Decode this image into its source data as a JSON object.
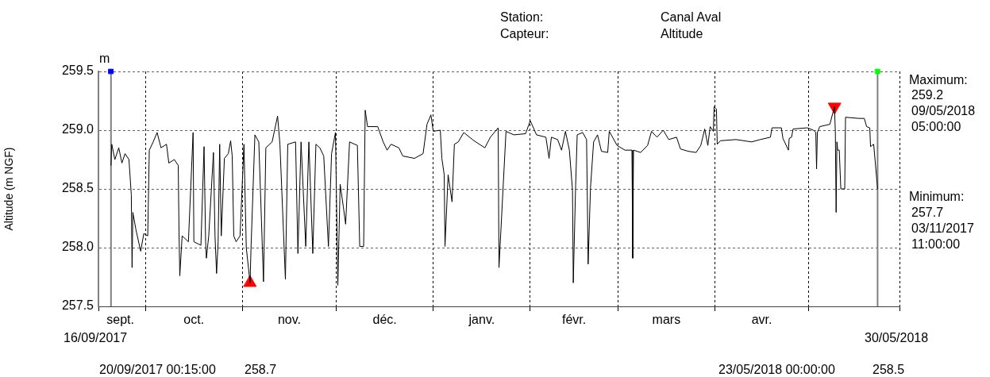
{
  "chart_data": {
    "type": "line",
    "ylabel": "Altitude (m NGF)",
    "annotations": [
      "Station:",
      "Canal Aval",
      "Capteur:",
      "Altitude",
      "m",
      "Maximum:",
      "259.2",
      "09/05/2018",
      "05:00:00",
      "Minimum:",
      "257.7",
      "03/11/2017",
      "11:00:00",
      "20/09/2017 00:15:00",
      "258.7",
      "23/05/2018 00:00:00",
      "258.5",
      "16/09/2017",
      "30/05/2018"
    ],
    "xlim": [
      "2017-09-16",
      "2018-05-30"
    ],
    "xticks": [
      {
        "value": "2017-09-16",
        "label": null
      },
      {
        "value": "2017-09-23",
        "label": "sept."
      },
      {
        "value": "2017-10-01",
        "label": null
      },
      {
        "value": "2017-10-16T12:00",
        "label": "oct."
      },
      {
        "value": "2017-11-01",
        "label": null
      },
      {
        "value": "2017-11-16",
        "label": "nov."
      },
      {
        "value": "2017-12-01",
        "label": null
      },
      {
        "value": "2017-12-16T12:00",
        "label": "déc."
      },
      {
        "value": "2018-01-01",
        "label": null
      },
      {
        "value": "2018-01-16T12:00",
        "label": "janv."
      },
      {
        "value": "2018-02-01",
        "label": null
      },
      {
        "value": "2018-02-15",
        "label": "févr."
      },
      {
        "value": "2018-03-01",
        "label": null
      },
      {
        "value": "2018-03-16T12:00",
        "label": "mars"
      },
      {
        "value": "2018-04-01",
        "label": null
      },
      {
        "value": "2018-04-16",
        "label": "avr."
      },
      {
        "value": "2018-05-01",
        "label": null
      },
      {
        "value": "2018-05-30",
        "label": null
      }
    ],
    "ylim": [
      257.5,
      259.5
    ],
    "yticks": [
      257.5,
      {
        "value": 258,
        "label": "258.0"
      },
      258.5,
      {
        "value": 259,
        "label": "259.0"
      },
      259.5
    ],
    "grid": true,
    "ref_lines": [
      {
        "axis": "x",
        "value": "2017-09-20T00:15",
        "color": "#808080"
      },
      {
        "axis": "x",
        "value": "2018-05-23T00:00",
        "color": "#808080"
      }
    ],
    "series": [
      {
        "color": "#000000",
        "marker": "none",
        "x": [
          "2017-09-20T00:15",
          "2017-09-20T06:00",
          "2017-09-21T06:00",
          "2017-09-22T12:00",
          "2017-09-23T12:00",
          "2017-09-24T12:00",
          "2017-09-25T18:00",
          "2017-09-26T12:00",
          "2017-09-26T18:00",
          "2017-09-27T00:00",
          "2017-09-28T00:00",
          "2017-09-29T12:00",
          "2017-09-30T12:00",
          "2017-10-01T18:00",
          "2017-10-02T06:00",
          "2017-10-03T12:00",
          "2017-10-04T18:00",
          "2017-10-06T00:00",
          "2017-10-07T18:00",
          "2017-10-08T12:00",
          "2017-10-10T06:00",
          "2017-10-11T12:00",
          "2017-10-11T18:00",
          "2017-10-12T00:00",
          "2017-10-12T18:00",
          "2017-10-14T18:00",
          "2017-10-16T06:00",
          "2017-10-16T12:00",
          "2017-10-18T18:00",
          "2017-10-19T18:00",
          "2017-10-20T06:00",
          "2017-10-20T12:00",
          "2017-10-21T06:00",
          "2017-10-22T18:00",
          "2017-10-23T06:00",
          "2017-10-23T18:00",
          "2017-10-24T06:00",
          "2017-10-24T18:00",
          "2017-10-25T06:00",
          "2017-10-26T06:00",
          "2017-10-27T12:00",
          "2017-10-28T06:00",
          "2017-10-28T18:00",
          "2017-10-29T06:00",
          "2017-10-30T00:00",
          "2017-10-31T06:00",
          "2017-11-01T12:00",
          "2017-11-02T06:00",
          "2017-11-03T11:00",
          "2017-11-03T18:00",
          "2017-11-05T00:00",
          "2017-11-06T06:00",
          "2017-11-07T18:00",
          "2017-11-08T12:00",
          "2017-11-10T12:00",
          "2017-11-12T06:00",
          "2017-11-13T00:00",
          "2017-11-14T18:00",
          "2017-11-15T12:00",
          "2017-11-18T00:00",
          "2017-11-18T18:00",
          "2017-11-19T18:00",
          "2017-11-21T06:00",
          "2017-11-22T06:00",
          "2017-11-23T12:00",
          "2017-11-24T12:00",
          "2017-11-25T18:00",
          "2017-11-27T00:00",
          "2017-11-28T12:00",
          "2017-11-29T12:00",
          "2017-11-30T18:00",
          "2017-12-01T12:00",
          "2017-12-02T06:00",
          "2017-12-03T06:00",
          "2017-12-04T00:00",
          "2017-12-05T06:00",
          "2017-12-07T18:00",
          "2017-12-08T12:00",
          "2017-12-09T18:00",
          "2017-12-10T06:00",
          "2017-12-11T00:00",
          "2017-12-14T06:00",
          "2017-12-16T00:00",
          "2017-12-17T06:00",
          "2017-12-18T12:00",
          "2017-12-21T00:00",
          "2017-12-22T06:00",
          "2017-12-26T00:00",
          "2017-12-28T18:00",
          "2017-12-30T00:00",
          "2017-12-31T06:00",
          "2018-01-01T00:00",
          "2018-01-03T06:00",
          "2018-01-03T18:00",
          "2018-01-04T12:00",
          "2018-01-04T18:00",
          "2018-01-05T18:00",
          "2018-01-07T00:00",
          "2018-01-07T18:00",
          "2018-01-09T00:00",
          "2018-01-10T18:00",
          "2018-01-14T00:00",
          "2018-01-17T12:00",
          "2018-01-19T06:00",
          "2018-01-21T18:00",
          "2018-01-22T00:00",
          "2018-01-24T06:00",
          "2018-01-26T18:00",
          "2018-01-30T12:00",
          "2018-02-01T00:00",
          "2018-02-03T00:00",
          "2018-02-06T00:00",
          "2018-02-07T00:00",
          "2018-02-07T18:00",
          "2018-02-09T18:00",
          "2018-02-11T00:00",
          "2018-02-12T06:00",
          "2018-02-13T12:00",
          "2018-02-14T12:00",
          "2018-02-14T18:00",
          "2018-02-15T12:00",
          "2018-02-16T00:00",
          "2018-02-17T18:00",
          "2018-02-19T00:00",
          "2018-02-19T12:00",
          "2018-02-20T06:00",
          "2018-02-21T06:00",
          "2018-02-22T12:00",
          "2018-02-23T18:00",
          "2018-02-25T18:00",
          "2018-02-26T06:00",
          "2018-02-28T18:00",
          "2018-03-03T06:00",
          "2018-03-05T12:00",
          "2018-03-05T18:00",
          "2018-03-06T00:00",
          "2018-03-08T06:00",
          "2018-03-10T12:00",
          "2018-03-11T18:00",
          "2018-03-13T12:00",
          "2018-03-15T12:00",
          "2018-03-17T06:00",
          "2018-03-19T18:00",
          "2018-03-21T00:00",
          "2018-03-23T12:00",
          "2018-03-26T00:00",
          "2018-03-27T12:00",
          "2018-03-28T18:00",
          "2018-03-29T18:00",
          "2018-03-30T12:00",
          "2018-03-31T12:00",
          "2018-03-31T18:00",
          "2018-04-01T12:00",
          "2018-04-01T18:00",
          "2018-04-02T18:00",
          "2018-04-07T18:00",
          "2018-04-12T18:00",
          "2018-04-15T12:00",
          "2018-04-18T18:00",
          "2018-04-19T06:00",
          "2018-04-22T06:00",
          "2018-04-22T18:00",
          "2018-04-24T12:00",
          "2018-04-24T18:00",
          "2018-04-25T12:00",
          "2018-04-26T00:00",
          "2018-04-30T12:00",
          "2018-05-02T12:00",
          "2018-05-03T06:00",
          "2018-05-03T12:00",
          "2018-05-03T18:00",
          "2018-05-04T12:00",
          "2018-05-07T18:00",
          "2018-05-09T05:00",
          "2018-05-09T12:00",
          "2018-05-09T18:00",
          "2018-05-10T00:00",
          "2018-05-10T06:00",
          "2018-05-10T18:00",
          "2018-05-11T06:00",
          "2018-05-12T12:00",
          "2018-05-12T18:00",
          "2018-05-17T00:00",
          "2018-05-18T18:00",
          "2018-05-19T12:00",
          "2018-05-20T12:00",
          "2018-05-20T18:00",
          "2018-05-21T18:00",
          "2018-05-23T00:00"
        ],
        "values": [
          258.7,
          258.88,
          258.75,
          258.85,
          258.72,
          258.8,
          258.75,
          258.45,
          257.83,
          258.3,
          258.15,
          257.97,
          258.12,
          258.1,
          258.83,
          258.9,
          258.98,
          258.85,
          258.88,
          258.72,
          258.75,
          258.7,
          258.13,
          257.76,
          258.1,
          258.05,
          258.98,
          258.05,
          258.02,
          258.86,
          258.05,
          257.91,
          258.1,
          258.81,
          258.1,
          257.78,
          258.05,
          258.88,
          258.1,
          258.76,
          258.8,
          258.91,
          258.78,
          258.1,
          258.05,
          258.1,
          258.88,
          258.0,
          257.7,
          257.99,
          258.96,
          258.9,
          257.71,
          258.85,
          258.9,
          259.12,
          258.88,
          257.73,
          258.88,
          258.9,
          257.95,
          258.9,
          258.01,
          258.9,
          257.95,
          258.88,
          258.85,
          258.78,
          258.01,
          258.8,
          258.98,
          257.68,
          258.54,
          258.35,
          258.2,
          258.9,
          258.87,
          258.01,
          258.01,
          259.17,
          259.03,
          259.03,
          258.9,
          258.83,
          258.88,
          258.85,
          258.78,
          258.76,
          258.8,
          259.05,
          259.13,
          258.99,
          259.0,
          258.76,
          258.62,
          258.01,
          258.62,
          258.39,
          258.88,
          258.9,
          258.98,
          258.91,
          258.85,
          258.94,
          259.02,
          257.83,
          258.99,
          258.96,
          258.97,
          259.08,
          258.96,
          258.94,
          258.76,
          258.94,
          258.92,
          258.83,
          258.99,
          258.83,
          258.49,
          257.7,
          258.53,
          258.96,
          258.98,
          258.92,
          257.86,
          258.51,
          258.9,
          258.96,
          258.82,
          258.81,
          258.99,
          258.87,
          258.83,
          258.83,
          257.91,
          258.83,
          258.81,
          258.87,
          258.99,
          258.94,
          259.0,
          258.92,
          258.94,
          258.84,
          258.82,
          258.81,
          258.87,
          259.01,
          258.87,
          259.03,
          258.99,
          259.2,
          259.18,
          258.88,
          258.91,
          258.92,
          258.9,
          258.92,
          258.94,
          259.02,
          259.02,
          258.93,
          258.83,
          258.93,
          258.94,
          259.01,
          259.02,
          259.0,
          258.98,
          258.67,
          258.98,
          259.03,
          259.05,
          259.2,
          258.99,
          258.3,
          258.9,
          258.83,
          258.83,
          258.5,
          258.5,
          259.11,
          259.1,
          259.1,
          259.03,
          259.02,
          258.86,
          258.88,
          258.5
        ]
      },
      {
        "type": "scatter",
        "marker": "triangle",
        "color": "#ff0000",
        "x": [
          "2017-11-03T11:00",
          "2018-05-09T05:00"
        ],
        "values": [
          257.7,
          259.2
        ]
      },
      {
        "type": "scatter",
        "marker": "square",
        "colors": [
          "#0000ff",
          "#00ff00"
        ],
        "x": [
          "2017-09-20T00:15",
          "2018-05-23T00:00"
        ],
        "values": [
          259.5,
          259.5
        ]
      }
    ]
  }
}
